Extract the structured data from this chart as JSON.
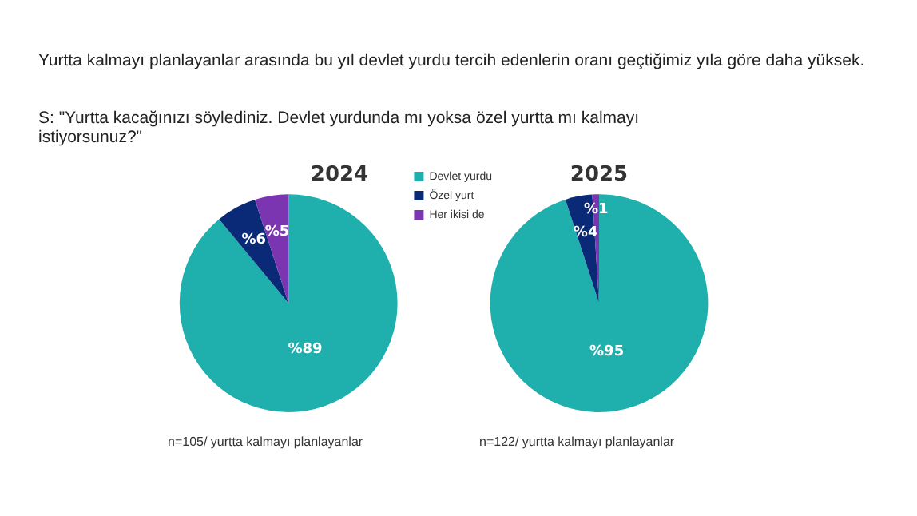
{
  "chart_data": [
    {
      "type": "pie",
      "title": "2024",
      "categories": [
        "Devlet yurdu",
        "Özel yurt",
        "Her ikisi de"
      ],
      "values": [
        89,
        6,
        5
      ],
      "colors": [
        "#1fb0ae",
        "#0a2a78",
        "#7b35b0"
      ],
      "value_labels": [
        "%89",
        "%6",
        "%5"
      ],
      "legend": "right",
      "annotations": [
        "Yurtta kalmayı planlayanlar arasında bu yıl devlet yurdu tercih edenlerin oranı geçtiğimiz yıla göre daha yüksek.",
        "S: \"Yurtta kacağınızı söylediniz. Devlet yurdunda mı yoksa özel yurtta mı kalmayı istiyorsunuz?\"",
        "n=105/ yurtta kalmayı planlayanlar"
      ]
    },
    {
      "type": "pie",
      "title": "2025",
      "categories": [
        null,
        null,
        null
      ],
      "values": [
        95,
        4,
        1
      ],
      "colors": [
        "#1fb0ae",
        "#0a2a78",
        "#7b35b0"
      ],
      "value_labels": [
        "%95",
        "%4",
        "%1"
      ],
      "annotations": [
        "n=122/ yurtta kalmayı planlayanlar"
      ]
    }
  ]
}
